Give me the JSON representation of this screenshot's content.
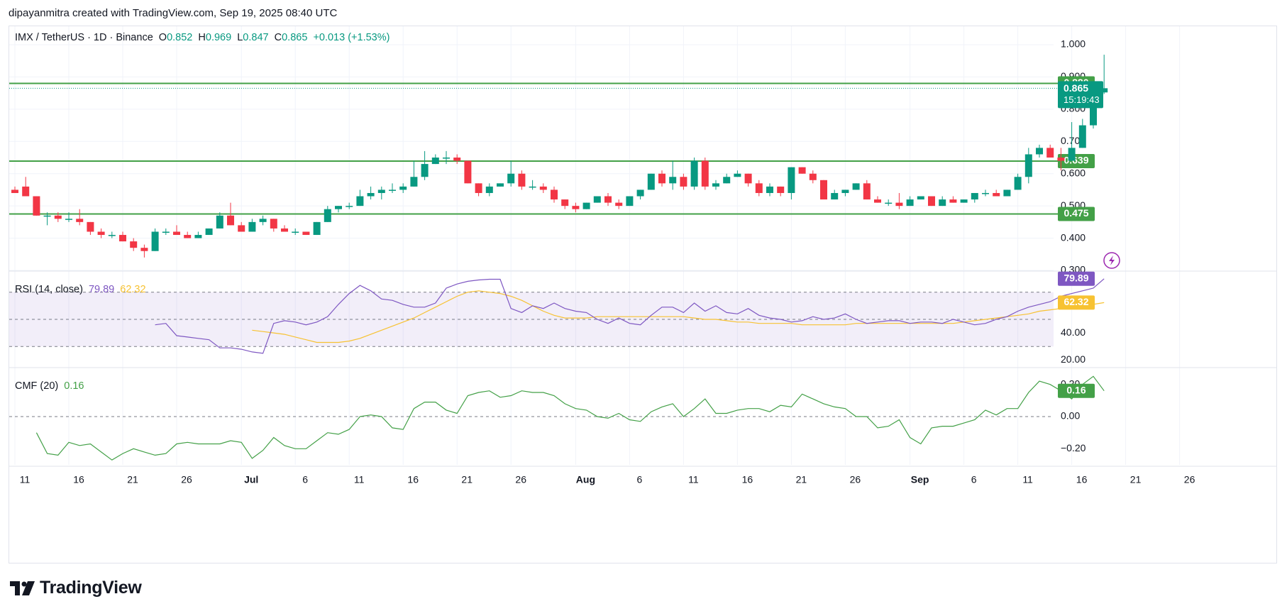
{
  "header": {
    "text": "dipayanmitra created with TradingView.com, Sep 19, 2025 08:40 UTC"
  },
  "legend": {
    "symbol": "IMX / TetherUS · 1D · Binance",
    "o_label": "O",
    "o_value": "0.852",
    "h_label": "H",
    "h_value": "0.969",
    "l_label": "L",
    "l_value": "0.847",
    "c_label": "C",
    "c_value": "0.865",
    "change": "+0.013 (+1.53%)"
  },
  "rsi_legend": {
    "name": "RSI (14, close)",
    "value": "79.89",
    "ma_value": "62.32"
  },
  "cmf_legend": {
    "name": "CMF (20)",
    "value": "0.16"
  },
  "footer": {
    "brand": "TradingView"
  },
  "colors": {
    "up": "#089981",
    "down": "#f23645",
    "rsi": "#7e57c2",
    "rsi_ma": "#f7c232",
    "cmf": "#43a047",
    "level": "#43a047",
    "badge_price": "#089981"
  },
  "chart_data": [
    {
      "type": "candlestick",
      "title": "IMX / TetherUS · 1D · Binance",
      "ylim": [
        0.3,
        1.0
      ],
      "y_ticks": [
        "1.000",
        "0.900",
        "0.800",
        "0.700",
        "0.600",
        "0.500",
        "0.400",
        "0.300"
      ],
      "x_tick_labels": [
        "11",
        "16",
        "21",
        "26",
        "Jul",
        "6",
        "11",
        "16",
        "21",
        "26",
        "Aug",
        "6",
        "11",
        "16",
        "21",
        "26",
        "Sep",
        "6",
        "11",
        "16",
        "21",
        "26"
      ],
      "horizontal_levels": [
        0.88,
        0.639,
        0.475
      ],
      "level_labels": [
        "0.880",
        "0.639",
        "0.475"
      ],
      "current_price": "0.865",
      "countdown": "15:19:43",
      "candles": [
        [
          0.55,
          0.56,
          0.54,
          0.54
        ],
        [
          0.56,
          0.59,
          0.53,
          0.53
        ],
        [
          0.53,
          0.53,
          0.47,
          0.47
        ],
        [
          0.47,
          0.48,
          0.44,
          0.47
        ],
        [
          0.47,
          0.48,
          0.45,
          0.46
        ],
        [
          0.46,
          0.48,
          0.45,
          0.46
        ],
        [
          0.46,
          0.49,
          0.44,
          0.45
        ],
        [
          0.45,
          0.45,
          0.41,
          0.42
        ],
        [
          0.42,
          0.43,
          0.4,
          0.41
        ],
        [
          0.41,
          0.42,
          0.4,
          0.41
        ],
        [
          0.41,
          0.42,
          0.39,
          0.39
        ],
        [
          0.39,
          0.4,
          0.36,
          0.37
        ],
        [
          0.37,
          0.38,
          0.34,
          0.36
        ],
        [
          0.36,
          0.43,
          0.36,
          0.42
        ],
        [
          0.42,
          0.43,
          0.41,
          0.42
        ],
        [
          0.42,
          0.44,
          0.41,
          0.41
        ],
        [
          0.41,
          0.42,
          0.4,
          0.4
        ],
        [
          0.4,
          0.42,
          0.4,
          0.41
        ],
        [
          0.41,
          0.43,
          0.41,
          0.43
        ],
        [
          0.43,
          0.48,
          0.43,
          0.47
        ],
        [
          0.47,
          0.51,
          0.44,
          0.44
        ],
        [
          0.44,
          0.45,
          0.42,
          0.42
        ],
        [
          0.42,
          0.46,
          0.42,
          0.45
        ],
        [
          0.45,
          0.47,
          0.44,
          0.46
        ],
        [
          0.46,
          0.46,
          0.42,
          0.43
        ],
        [
          0.43,
          0.44,
          0.42,
          0.42
        ],
        [
          0.42,
          0.43,
          0.41,
          0.42
        ],
        [
          0.42,
          0.42,
          0.41,
          0.41
        ],
        [
          0.41,
          0.45,
          0.41,
          0.45
        ],
        [
          0.45,
          0.5,
          0.45,
          0.49
        ],
        [
          0.49,
          0.5,
          0.48,
          0.5
        ],
        [
          0.5,
          0.51,
          0.49,
          0.5
        ],
        [
          0.5,
          0.55,
          0.5,
          0.53
        ],
        [
          0.53,
          0.56,
          0.52,
          0.54
        ],
        [
          0.54,
          0.56,
          0.52,
          0.55
        ],
        [
          0.55,
          0.57,
          0.54,
          0.55
        ],
        [
          0.55,
          0.57,
          0.54,
          0.56
        ],
        [
          0.56,
          0.64,
          0.56,
          0.59
        ],
        [
          0.59,
          0.67,
          0.58,
          0.63
        ],
        [
          0.63,
          0.66,
          0.63,
          0.65
        ],
        [
          0.65,
          0.67,
          0.63,
          0.65
        ],
        [
          0.65,
          0.66,
          0.63,
          0.64
        ],
        [
          0.64,
          0.64,
          0.57,
          0.57
        ],
        [
          0.57,
          0.57,
          0.53,
          0.54
        ],
        [
          0.54,
          0.57,
          0.53,
          0.56
        ],
        [
          0.56,
          0.57,
          0.56,
          0.57
        ],
        [
          0.57,
          0.64,
          0.56,
          0.6
        ],
        [
          0.6,
          0.61,
          0.55,
          0.56
        ],
        [
          0.56,
          0.58,
          0.55,
          0.56
        ],
        [
          0.56,
          0.57,
          0.54,
          0.55
        ],
        [
          0.55,
          0.56,
          0.51,
          0.52
        ],
        [
          0.52,
          0.52,
          0.49,
          0.5
        ],
        [
          0.5,
          0.51,
          0.48,
          0.49
        ],
        [
          0.49,
          0.51,
          0.49,
          0.51
        ],
        [
          0.51,
          0.53,
          0.51,
          0.53
        ],
        [
          0.53,
          0.54,
          0.5,
          0.51
        ],
        [
          0.51,
          0.52,
          0.49,
          0.5
        ],
        [
          0.5,
          0.53,
          0.5,
          0.53
        ],
        [
          0.53,
          0.55,
          0.52,
          0.55
        ],
        [
          0.55,
          0.6,
          0.55,
          0.6
        ],
        [
          0.6,
          0.61,
          0.56,
          0.57
        ],
        [
          0.57,
          0.64,
          0.55,
          0.59
        ],
        [
          0.59,
          0.6,
          0.55,
          0.56
        ],
        [
          0.56,
          0.65,
          0.55,
          0.64
        ],
        [
          0.64,
          0.65,
          0.55,
          0.56
        ],
        [
          0.56,
          0.58,
          0.55,
          0.57
        ],
        [
          0.57,
          0.6,
          0.57,
          0.59
        ],
        [
          0.59,
          0.61,
          0.59,
          0.6
        ],
        [
          0.6,
          0.6,
          0.56,
          0.57
        ],
        [
          0.57,
          0.58,
          0.53,
          0.54
        ],
        [
          0.54,
          0.57,
          0.53,
          0.56
        ],
        [
          0.56,
          0.56,
          0.53,
          0.54
        ],
        [
          0.54,
          0.62,
          0.52,
          0.62
        ],
        [
          0.62,
          0.62,
          0.6,
          0.6
        ],
        [
          0.6,
          0.61,
          0.57,
          0.58
        ],
        [
          0.58,
          0.58,
          0.52,
          0.52
        ],
        [
          0.52,
          0.55,
          0.52,
          0.54
        ],
        [
          0.54,
          0.55,
          0.53,
          0.55
        ],
        [
          0.55,
          0.57,
          0.55,
          0.57
        ],
        [
          0.57,
          0.58,
          0.52,
          0.52
        ],
        [
          0.52,
          0.53,
          0.51,
          0.51
        ],
        [
          0.51,
          0.52,
          0.5,
          0.51
        ],
        [
          0.51,
          0.54,
          0.49,
          0.5
        ],
        [
          0.5,
          0.53,
          0.5,
          0.52
        ],
        [
          0.52,
          0.53,
          0.52,
          0.53
        ],
        [
          0.53,
          0.53,
          0.5,
          0.5
        ],
        [
          0.5,
          0.53,
          0.5,
          0.52
        ],
        [
          0.52,
          0.53,
          0.51,
          0.51
        ],
        [
          0.51,
          0.52,
          0.51,
          0.52
        ],
        [
          0.52,
          0.54,
          0.51,
          0.54
        ],
        [
          0.54,
          0.55,
          0.53,
          0.54
        ],
        [
          0.54,
          0.55,
          0.53,
          0.53
        ],
        [
          0.53,
          0.55,
          0.53,
          0.55
        ],
        [
          0.55,
          0.6,
          0.55,
          0.59
        ],
        [
          0.59,
          0.68,
          0.57,
          0.66
        ],
        [
          0.66,
          0.69,
          0.65,
          0.68
        ],
        [
          0.68,
          0.69,
          0.65,
          0.65
        ],
        [
          0.65,
          0.68,
          0.61,
          0.64
        ],
        [
          0.64,
          0.76,
          0.64,
          0.68
        ],
        [
          0.68,
          0.77,
          0.68,
          0.75
        ],
        [
          0.75,
          0.87,
          0.74,
          0.852
        ],
        [
          0.852,
          0.969,
          0.847,
          0.865
        ]
      ]
    },
    {
      "type": "line",
      "title": "RSI (14, close)",
      "ylim": [
        15,
        85
      ],
      "y_ticks": [
        "40.00",
        "20.00"
      ],
      "band": [
        30,
        70
      ],
      "midline": 50,
      "series": [
        {
          "name": "RSI (14, close)",
          "label": "79.89",
          "values": [
            46,
            47,
            38,
            37,
            36,
            35,
            29,
            29,
            28,
            26,
            25,
            47,
            49,
            48,
            46,
            48,
            52,
            61,
            69,
            75,
            71,
            65,
            64,
            61,
            59,
            59,
            62,
            73,
            76,
            78,
            79,
            79.5,
            79.5,
            58,
            55,
            60,
            58,
            62,
            58,
            56,
            55,
            50,
            47,
            51,
            47,
            46,
            53,
            59,
            59,
            55,
            62,
            56,
            60,
            55,
            54,
            58,
            53,
            51,
            50,
            48,
            49,
            52,
            50,
            51,
            54,
            50,
            47,
            48,
            49,
            49,
            47,
            48,
            48,
            47,
            50,
            48,
            46,
            47,
            50,
            52,
            56,
            59,
            61,
            63,
            67,
            69,
            71,
            73,
            79.89
          ]
        },
        {
          "name": "MA",
          "label": "62.32",
          "values": [
            42,
            41,
            40,
            39,
            37,
            35,
            33,
            33,
            33,
            34,
            36,
            39,
            42,
            45,
            48,
            51,
            55,
            59,
            63,
            67,
            70,
            71,
            70,
            69,
            67,
            64,
            60,
            56,
            53,
            51,
            51,
            51,
            52,
            52,
            52,
            52,
            52,
            52,
            52,
            52,
            52,
            51,
            50,
            50,
            49,
            48,
            48,
            47,
            47,
            47,
            47,
            46,
            46,
            46,
            46,
            46,
            47,
            47,
            47,
            47,
            47,
            47,
            47,
            47,
            47,
            47,
            48,
            49,
            50,
            51,
            52,
            53,
            54,
            56,
            57,
            58,
            59,
            60,
            61,
            62.32
          ]
        }
      ]
    },
    {
      "type": "line",
      "title": "CMF (20)",
      "ylim": [
        -0.3,
        0.3
      ],
      "y_ticks": [
        "0.20",
        "0.00",
        "−0.20"
      ],
      "zero_line": 0,
      "series": [
        {
          "name": "CMF (20)",
          "label": "0.16",
          "values": [
            -0.1,
            -0.23,
            -0.24,
            -0.16,
            -0.18,
            -0.17,
            -0.22,
            -0.27,
            -0.23,
            -0.2,
            -0.22,
            -0.24,
            -0.23,
            -0.17,
            -0.16,
            -0.17,
            -0.17,
            -0.17,
            -0.15,
            -0.16,
            -0.26,
            -0.21,
            -0.13,
            -0.18,
            -0.2,
            -0.2,
            -0.15,
            -0.1,
            -0.11,
            -0.08,
            0.0,
            0.01,
            0.0,
            -0.07,
            -0.08,
            0.05,
            0.09,
            0.09,
            0.04,
            0.02,
            0.13,
            0.15,
            0.16,
            0.12,
            0.13,
            0.16,
            0.15,
            0.15,
            0.13,
            0.08,
            0.05,
            0.04,
            0.0,
            -0.01,
            0.02,
            -0.02,
            -0.03,
            0.03,
            0.06,
            0.08,
            0.0,
            0.05,
            0.11,
            0.02,
            0.02,
            0.04,
            0.05,
            0.05,
            0.03,
            0.07,
            0.06,
            0.14,
            0.11,
            0.08,
            0.06,
            0.05,
            0.0,
            0.0,
            -0.07,
            -0.06,
            -0.02,
            -0.13,
            -0.17,
            -0.07,
            -0.06,
            -0.06,
            -0.04,
            -0.02,
            0.04,
            0.01,
            0.05,
            0.05,
            0.15,
            0.22,
            0.2,
            0.16,
            0.11,
            0.2,
            0.25,
            0.16
          ]
        }
      ]
    }
  ]
}
